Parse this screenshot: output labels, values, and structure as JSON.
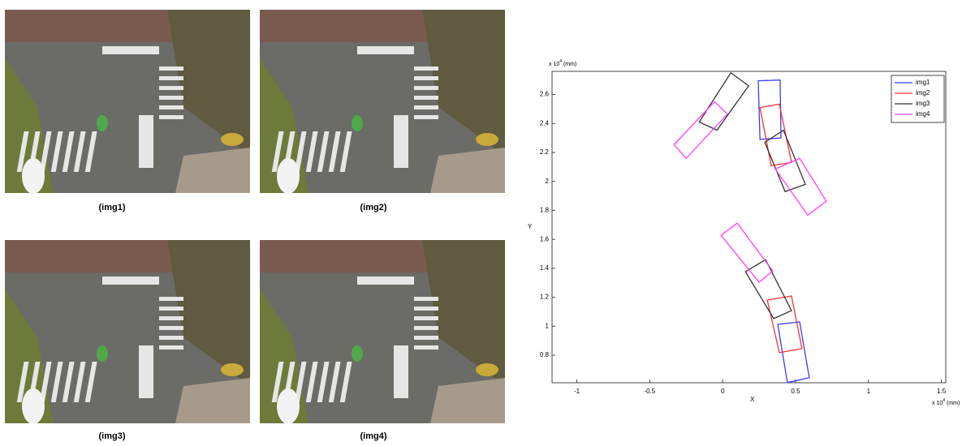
{
  "figure": {
    "captions": [
      "(img1)",
      "(img2)",
      "(img3)",
      "(img4)"
    ],
    "plot": {
      "x_label": "X",
      "y_label": "Y",
      "x_multiplier": {
        "base": "x 10",
        "exponent": "4",
        "unit": "(mm)"
      },
      "y_multiplier": {
        "base": "x 10",
        "exponent": "4",
        "unit": "(mm)"
      },
      "xlim": [
        -1.17,
        1.53
      ],
      "ylim": [
        0.61,
        2.76
      ],
      "xticks": [
        -1,
        -0.5,
        0,
        0.5,
        1,
        1.5
      ],
      "yticks": [
        0.8,
        1,
        1.2,
        1.4,
        1.6,
        1.8,
        2,
        2.2,
        2.4,
        2.6
      ],
      "series": [
        {
          "name": "img1",
          "color": "#3b3bff",
          "boxes": [
            [
              [
                0.244,
                2.695
              ],
              [
                0.394,
                2.7
              ],
              [
                0.4,
                2.3
              ],
              [
                0.256,
                2.29
              ]
            ],
            [
              [
                0.378,
                1.013
              ],
              [
                0.528,
                1.03
              ],
              [
                0.594,
                0.645
              ],
              [
                0.444,
                0.611
              ]
            ]
          ]
        },
        {
          "name": "img2",
          "color": "#ff3030",
          "boxes": [
            [
              [
                0.256,
                2.51
              ],
              [
                0.389,
                2.533
              ],
              [
                0.472,
                2.131
              ],
              [
                0.333,
                2.109
              ]
            ],
            [
              [
                0.306,
                1.181
              ],
              [
                0.472,
                1.209
              ],
              [
                0.544,
                0.846
              ],
              [
                0.389,
                0.818
              ]
            ]
          ]
        },
        {
          "name": "img3",
          "color": "#333333",
          "boxes": [
            [
              [
                -0.161,
                2.41
              ],
              [
                0.056,
                2.75
              ],
              [
                0.178,
                2.66
              ],
              [
                -0.039,
                2.354
              ]
            ],
            [
              [
                0.289,
                2.27
              ],
              [
                0.417,
                2.354
              ],
              [
                0.567,
                1.98
              ],
              [
                0.428,
                1.93
              ]
            ],
            [
              [
                0.156,
                1.377
              ],
              [
                0.294,
                1.46
              ],
              [
                0.472,
                1.108
              ],
              [
                0.35,
                1.053
              ]
            ]
          ]
        },
        {
          "name": "img4",
          "color": "#ff40ff",
          "boxes": [
            [
              [
                -0.333,
                2.254
              ],
              [
                -0.056,
                2.55
              ],
              [
                0.033,
                2.466
              ],
              [
                -0.25,
                2.159
              ]
            ],
            [
              [
                0.361,
                2.086
              ],
              [
                0.528,
                2.159
              ],
              [
                0.711,
                1.863
              ],
              [
                0.583,
                1.768
              ]
            ],
            [
              [
                -0.011,
                1.628
              ],
              [
                0.1,
                1.712
              ],
              [
                0.344,
                1.382
              ],
              [
                0.25,
                1.304
              ]
            ]
          ]
        }
      ]
    }
  }
}
